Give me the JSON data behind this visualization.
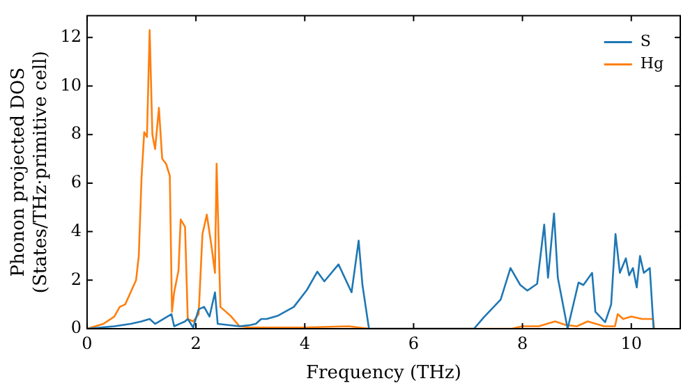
{
  "chart_data": {
    "type": "line",
    "xlabel": "Frequency (THz)",
    "ylabel": "Phonon projected DOS\n(States/THz·primitive cell)",
    "xlim": [
      0,
      10.9
    ],
    "ylim": [
      0,
      12.9
    ],
    "xticks": [
      0,
      2,
      4,
      6,
      8,
      10
    ],
    "yticks": [
      0,
      2,
      4,
      6,
      8,
      10,
      12
    ],
    "grid": false,
    "legend": "top right",
    "marker": "none",
    "line_style": "solid",
    "series": [
      {
        "name": "S",
        "color": "#1f77b4",
        "x": [
          0,
          0.5,
          0.8,
          1.0,
          1.15,
          1.25,
          1.4,
          1.55,
          1.6,
          1.8,
          1.85,
          1.95,
          2.05,
          2.15,
          2.25,
          2.35,
          2.4,
          2.6,
          2.8,
          3.0,
          3.1,
          3.2,
          3.3,
          3.5,
          3.8,
          4.04,
          4.23,
          4.36,
          4.62,
          4.86,
          4.99,
          5.06,
          5.18,
          7.11,
          7.29,
          7.6,
          7.78,
          7.96,
          8.09,
          8.27,
          8.4,
          8.47,
          8.58,
          8.65,
          8.83,
          9.03,
          9.12,
          9.28,
          9.34,
          9.52,
          9.63,
          9.71,
          9.79,
          9.9,
          9.96,
          10.03,
          10.1,
          10.16,
          10.23,
          10.34,
          10.41
        ],
        "values": [
          0,
          0.1,
          0.2,
          0.3,
          0.4,
          0.2,
          0.4,
          0.6,
          0.1,
          0.3,
          0.4,
          0.05,
          0.8,
          0.9,
          0.5,
          1.5,
          0.2,
          0.15,
          0.1,
          0.15,
          0.2,
          0.4,
          0.4,
          0.53,
          0.9,
          1.6,
          2.35,
          1.95,
          2.65,
          1.5,
          3.63,
          1.8,
          0,
          0,
          0.47,
          1.2,
          2.5,
          1.8,
          1.57,
          1.85,
          4.29,
          2.1,
          4.75,
          2.1,
          0,
          1.9,
          1.8,
          2.3,
          0.7,
          0.27,
          1.0,
          3.9,
          2.3,
          2.9,
          2.2,
          2.5,
          1.7,
          3.0,
          2.3,
          2.5,
          0
        ]
      },
      {
        "name": "Hg",
        "color": "#ff7f0e",
        "x": [
          0,
          0.3,
          0.5,
          0.6,
          0.7,
          0.8,
          0.9,
          0.95,
          1.0,
          1.05,
          1.1,
          1.15,
          1.2,
          1.25,
          1.32,
          1.38,
          1.45,
          1.52,
          1.56,
          1.6,
          1.68,
          1.72,
          1.8,
          1.85,
          1.95,
          2.05,
          2.12,
          2.2,
          2.28,
          2.35,
          2.38,
          2.45,
          2.55,
          2.65,
          2.8,
          3.0,
          4.0,
          4.8,
          5.2,
          7.8,
          8.0,
          8.3,
          8.6,
          8.8,
          9.0,
          9.2,
          9.5,
          9.7,
          9.75,
          9.85,
          10.0,
          10.2,
          10.4,
          10.42
        ],
        "values": [
          0,
          0.2,
          0.5,
          0.9,
          1.0,
          1.5,
          2.0,
          3.0,
          6.2,
          8.1,
          7.9,
          12.3,
          8.0,
          7.4,
          9.1,
          7.0,
          6.8,
          6.3,
          0.7,
          1.5,
          2.4,
          4.5,
          4.2,
          0.4,
          0.3,
          0.6,
          3.9,
          4.7,
          3.5,
          2.3,
          6.8,
          0.9,
          0.7,
          0.5,
          0.1,
          0.05,
          0.05,
          0.1,
          0,
          0,
          0.1,
          0.1,
          0.3,
          0.15,
          0.1,
          0.3,
          0.1,
          0.1,
          0.6,
          0.4,
          0.5,
          0.4,
          0.4,
          0
        ]
      }
    ]
  }
}
